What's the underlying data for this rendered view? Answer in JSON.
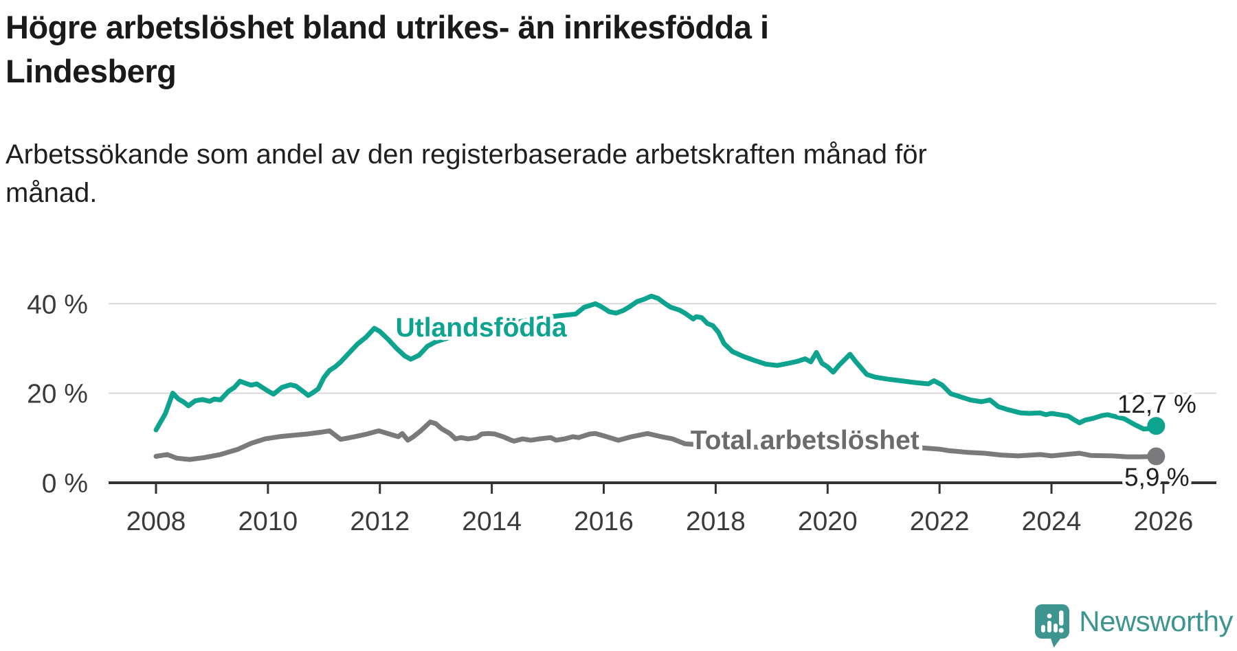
{
  "header": {
    "title_line1": "Högre arbetslöshet bland utrikes- än inrikesfödda i",
    "title_line2": "Lindesberg",
    "subtitle_line1": "Arbetssökande som andel av den registerbaserade arbetskraften månad för",
    "subtitle_line2": "månad."
  },
  "chart_data": {
    "type": "line",
    "title": "Högre arbetslöshet bland utrikes- än inrikesfödda i Lindesberg",
    "subtitle": "Arbetssökande som andel av den registerbaserade arbetskraften månad för månad.",
    "unit": "%",
    "grid": "horizontal",
    "x_axis": {
      "ticks": [
        2008,
        2010,
        2012,
        2014,
        2016,
        2018,
        2020,
        2022,
        2024,
        2026
      ],
      "range": [
        2007.2,
        2026.95
      ]
    },
    "y_axis": {
      "ticks": [
        {
          "value": 0,
          "label": "0 %"
        },
        {
          "value": 20,
          "label": "20 %"
        },
        {
          "value": 40,
          "label": "40 %"
        }
      ],
      "range": [
        0,
        44
      ]
    },
    "colors": {
      "axis": "#333333",
      "grid": "#D9D9D9",
      "tick_labels": "#3B3B3B",
      "value_labels": "#1F1F1F"
    },
    "series": [
      {
        "id": "utlandsfodda",
        "name": "Utlandsfödda",
        "color": "#0DA38F",
        "label_color": "#0DA38F",
        "end_label": "12,7 %",
        "end_value": 12.7,
        "label_anchor": {
          "year": 2012.28,
          "value": 32.7
        },
        "points": [
          [
            2008.0,
            11.8
          ],
          [
            2008.17,
            15.5
          ],
          [
            2008.3,
            20.0
          ],
          [
            2008.4,
            18.7
          ],
          [
            2008.5,
            18.0
          ],
          [
            2008.58,
            17.2
          ],
          [
            2008.7,
            18.3
          ],
          [
            2008.83,
            18.6
          ],
          [
            2008.96,
            18.2
          ],
          [
            2009.04,
            18.7
          ],
          [
            2009.15,
            18.5
          ],
          [
            2009.3,
            20.5
          ],
          [
            2009.4,
            21.3
          ],
          [
            2009.5,
            22.7
          ],
          [
            2009.63,
            22.1
          ],
          [
            2009.7,
            21.8
          ],
          [
            2009.8,
            22.1
          ],
          [
            2009.9,
            21.3
          ],
          [
            2010.0,
            20.5
          ],
          [
            2010.1,
            19.8
          ],
          [
            2010.25,
            21.3
          ],
          [
            2010.4,
            21.9
          ],
          [
            2010.5,
            21.6
          ],
          [
            2010.65,
            20.2
          ],
          [
            2010.72,
            19.5
          ],
          [
            2010.8,
            20.1
          ],
          [
            2010.9,
            21.0
          ],
          [
            2011.0,
            23.5
          ],
          [
            2011.1,
            25.1
          ],
          [
            2011.2,
            25.9
          ],
          [
            2011.3,
            27.0
          ],
          [
            2011.45,
            29.0
          ],
          [
            2011.6,
            31.0
          ],
          [
            2011.75,
            32.5
          ],
          [
            2011.9,
            34.5
          ],
          [
            2012.0,
            33.8
          ],
          [
            2012.15,
            32.0
          ],
          [
            2012.3,
            30.0
          ],
          [
            2012.45,
            28.3
          ],
          [
            2012.55,
            27.6
          ],
          [
            2012.7,
            28.5
          ],
          [
            2012.85,
            30.5
          ],
          [
            2013.0,
            31.5
          ],
          [
            2013.2,
            32.3
          ],
          [
            2013.4,
            33.0
          ],
          [
            2013.6,
            33.6
          ],
          [
            2013.8,
            34.2
          ],
          [
            2014.0,
            34.8
          ],
          [
            2014.2,
            35.3
          ],
          [
            2014.4,
            35.8
          ],
          [
            2014.6,
            36.2
          ],
          [
            2014.8,
            36.6
          ],
          [
            2015.0,
            37.0
          ],
          [
            2015.2,
            37.3
          ],
          [
            2015.5,
            37.7
          ],
          [
            2015.65,
            39.2
          ],
          [
            2015.85,
            40.0
          ],
          [
            2015.95,
            39.4
          ],
          [
            2016.1,
            38.2
          ],
          [
            2016.22,
            37.9
          ],
          [
            2016.35,
            38.5
          ],
          [
            2016.47,
            39.4
          ],
          [
            2016.6,
            40.5
          ],
          [
            2016.72,
            41.0
          ],
          [
            2016.85,
            41.7
          ],
          [
            2016.97,
            41.2
          ],
          [
            2017.1,
            40.0
          ],
          [
            2017.2,
            39.2
          ],
          [
            2017.35,
            38.6
          ],
          [
            2017.45,
            37.9
          ],
          [
            2017.6,
            36.6
          ],
          [
            2017.65,
            37.1
          ],
          [
            2017.75,
            36.9
          ],
          [
            2017.85,
            35.6
          ],
          [
            2017.95,
            35.1
          ],
          [
            2018.05,
            33.6
          ],
          [
            2018.15,
            31.1
          ],
          [
            2018.3,
            29.3
          ],
          [
            2018.5,
            28.2
          ],
          [
            2018.7,
            27.3
          ],
          [
            2018.9,
            26.5
          ],
          [
            2019.1,
            26.2
          ],
          [
            2019.3,
            26.7
          ],
          [
            2019.45,
            27.1
          ],
          [
            2019.6,
            27.7
          ],
          [
            2019.7,
            27.0
          ],
          [
            2019.8,
            29.1
          ],
          [
            2019.9,
            26.7
          ],
          [
            2020.0,
            25.9
          ],
          [
            2020.1,
            24.7
          ],
          [
            2020.2,
            26.2
          ],
          [
            2020.4,
            28.7
          ],
          [
            2020.5,
            27.1
          ],
          [
            2020.7,
            24.2
          ],
          [
            2020.85,
            23.6
          ],
          [
            2021.1,
            23.1
          ],
          [
            2021.3,
            22.8
          ],
          [
            2021.55,
            22.4
          ],
          [
            2021.8,
            22.1
          ],
          [
            2021.9,
            22.8
          ],
          [
            2022.05,
            21.8
          ],
          [
            2022.2,
            19.9
          ],
          [
            2022.35,
            19.3
          ],
          [
            2022.55,
            18.5
          ],
          [
            2022.75,
            18.1
          ],
          [
            2022.9,
            18.5
          ],
          [
            2023.05,
            17.0
          ],
          [
            2023.2,
            16.4
          ],
          [
            2023.45,
            15.6
          ],
          [
            2023.6,
            15.5
          ],
          [
            2023.8,
            15.6
          ],
          [
            2023.9,
            15.2
          ],
          [
            2024.0,
            15.5
          ],
          [
            2024.15,
            15.2
          ],
          [
            2024.3,
            14.9
          ],
          [
            2024.4,
            14.1
          ],
          [
            2024.5,
            13.4
          ],
          [
            2024.6,
            14.0
          ],
          [
            2024.75,
            14.4
          ],
          [
            2024.9,
            15.0
          ],
          [
            2025.0,
            15.2
          ],
          [
            2025.3,
            14.3
          ],
          [
            2025.5,
            12.9
          ],
          [
            2025.65,
            12.0
          ],
          [
            2025.75,
            12.1
          ],
          [
            2025.87,
            12.7
          ]
        ]
      },
      {
        "id": "total",
        "name": "Total arbetslöshet",
        "color": "#7A7A7C",
        "label_color": "#6B6B6D",
        "end_label": "5,9 %",
        "end_value": 5.9,
        "label_anchor": {
          "year": 2017.55,
          "value": 7.5
        },
        "points": [
          [
            2008.0,
            5.9
          ],
          [
            2008.2,
            6.3
          ],
          [
            2008.37,
            5.5
          ],
          [
            2008.6,
            5.2
          ],
          [
            2008.85,
            5.6
          ],
          [
            2009.15,
            6.3
          ],
          [
            2009.47,
            7.5
          ],
          [
            2009.7,
            8.8
          ],
          [
            2009.95,
            9.8
          ],
          [
            2010.2,
            10.3
          ],
          [
            2010.45,
            10.6
          ],
          [
            2010.7,
            10.9
          ],
          [
            2010.95,
            11.3
          ],
          [
            2011.1,
            11.6
          ],
          [
            2011.3,
            9.7
          ],
          [
            2011.55,
            10.3
          ],
          [
            2011.77,
            10.9
          ],
          [
            2011.98,
            11.6
          ],
          [
            2012.17,
            10.9
          ],
          [
            2012.33,
            10.3
          ],
          [
            2012.4,
            11.0
          ],
          [
            2012.5,
            9.5
          ],
          [
            2012.6,
            10.3
          ],
          [
            2012.73,
            11.6
          ],
          [
            2012.8,
            12.4
          ],
          [
            2012.9,
            13.6
          ],
          [
            2013.0,
            13.2
          ],
          [
            2013.1,
            12.1
          ],
          [
            2013.25,
            11.0
          ],
          [
            2013.35,
            9.8
          ],
          [
            2013.45,
            10.1
          ],
          [
            2013.57,
            9.8
          ],
          [
            2013.73,
            10.1
          ],
          [
            2013.82,
            10.9
          ],
          [
            2013.94,
            11.0
          ],
          [
            2014.05,
            10.9
          ],
          [
            2014.2,
            10.3
          ],
          [
            2014.35,
            9.5
          ],
          [
            2014.4,
            9.3
          ],
          [
            2014.55,
            9.8
          ],
          [
            2014.7,
            9.5
          ],
          [
            2014.85,
            9.8
          ],
          [
            2015.05,
            10.1
          ],
          [
            2015.15,
            9.5
          ],
          [
            2015.3,
            9.8
          ],
          [
            2015.45,
            10.3
          ],
          [
            2015.55,
            10.1
          ],
          [
            2015.75,
            10.9
          ],
          [
            2015.85,
            11.0
          ],
          [
            2016.0,
            10.5
          ],
          [
            2016.26,
            9.5
          ],
          [
            2016.5,
            10.3
          ],
          [
            2016.78,
            11.0
          ],
          [
            2017.03,
            10.3
          ],
          [
            2017.23,
            9.8
          ],
          [
            2017.45,
            8.7
          ],
          [
            2017.7,
            8.5
          ],
          [
            2018.0,
            8.4
          ],
          [
            2018.3,
            8.2
          ],
          [
            2018.6,
            8.0
          ],
          [
            2018.9,
            7.9
          ],
          [
            2019.2,
            7.8
          ],
          [
            2019.5,
            7.9
          ],
          [
            2019.8,
            8.1
          ],
          [
            2020.0,
            8.3
          ],
          [
            2020.3,
            9.2
          ],
          [
            2020.5,
            9.0
          ],
          [
            2020.8,
            8.6
          ],
          [
            2021.1,
            8.3
          ],
          [
            2021.4,
            8.0
          ],
          [
            2021.7,
            7.8
          ],
          [
            2022.0,
            7.5
          ],
          [
            2022.15,
            7.2
          ],
          [
            2022.5,
            6.8
          ],
          [
            2022.8,
            6.6
          ],
          [
            2023.1,
            6.2
          ],
          [
            2023.4,
            6.0
          ],
          [
            2023.8,
            6.3
          ],
          [
            2024.0,
            6.0
          ],
          [
            2024.25,
            6.3
          ],
          [
            2024.5,
            6.6
          ],
          [
            2024.7,
            6.1
          ],
          [
            2025.1,
            6.0
          ],
          [
            2025.35,
            5.8
          ],
          [
            2025.6,
            5.8
          ],
          [
            2025.87,
            5.9
          ]
        ]
      }
    ]
  },
  "branding": {
    "name": "Newsworthy",
    "color": "#3E948E"
  }
}
